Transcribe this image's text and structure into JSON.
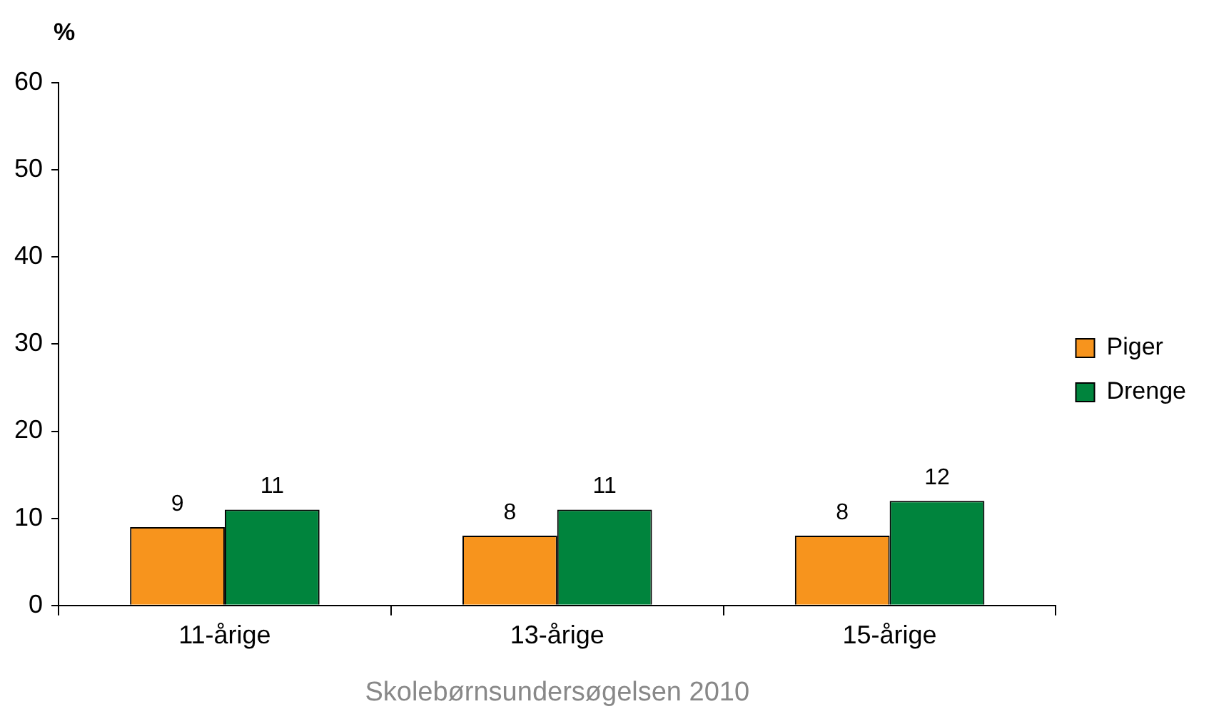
{
  "chart_data": {
    "type": "bar",
    "ylabel": "%",
    "categories": [
      "11-årige",
      "13-årige",
      "15-årige"
    ],
    "series": [
      {
        "name": "Piger",
        "color": "#f7941d",
        "values": [
          9,
          8,
          8
        ]
      },
      {
        "name": "Drenge",
        "color": "#00843d",
        "values": [
          11,
          11,
          12
        ]
      }
    ],
    "ylim": [
      0,
      60
    ],
    "yticks": [
      0,
      10,
      20,
      30,
      40,
      50,
      60
    ],
    "grid": false,
    "legend": "right",
    "data_labels": true,
    "annotations": [
      "Skolebørnsundersøgelsen 2010"
    ]
  }
}
